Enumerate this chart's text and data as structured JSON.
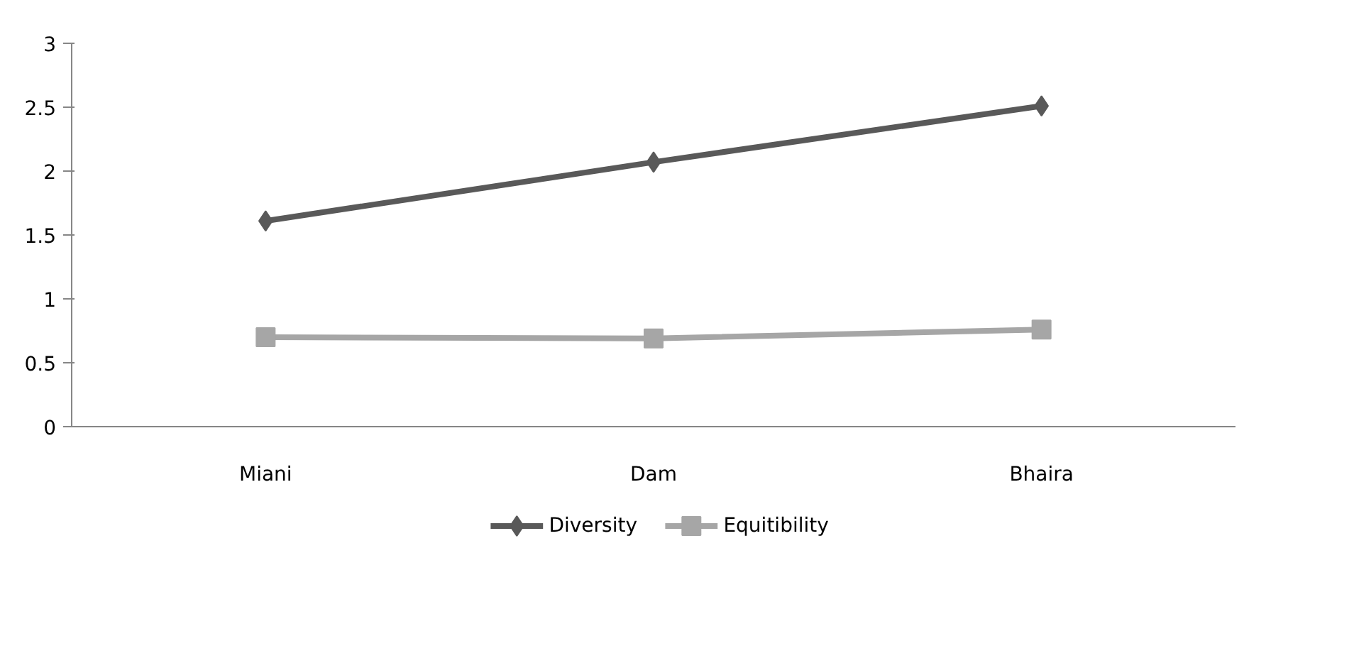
{
  "chart_data": {
    "type": "line",
    "categories": [
      "Miani",
      "Dam",
      "Bhaira"
    ],
    "series": [
      {
        "name": "Diversity",
        "color": "#595959",
        "values": [
          1.61,
          2.07,
          2.51
        ],
        "marker": "diamond"
      },
      {
        "name": "Equitibility",
        "color": "#a6a6a6",
        "values": [
          0.7,
          0.69,
          0.76
        ],
        "marker": "square"
      }
    ],
    "ylim": [
      0,
      3
    ],
    "yticks": [
      0,
      0.5,
      1,
      1.5,
      2,
      2.5,
      3
    ],
    "grid": false,
    "legend": "bottom"
  }
}
